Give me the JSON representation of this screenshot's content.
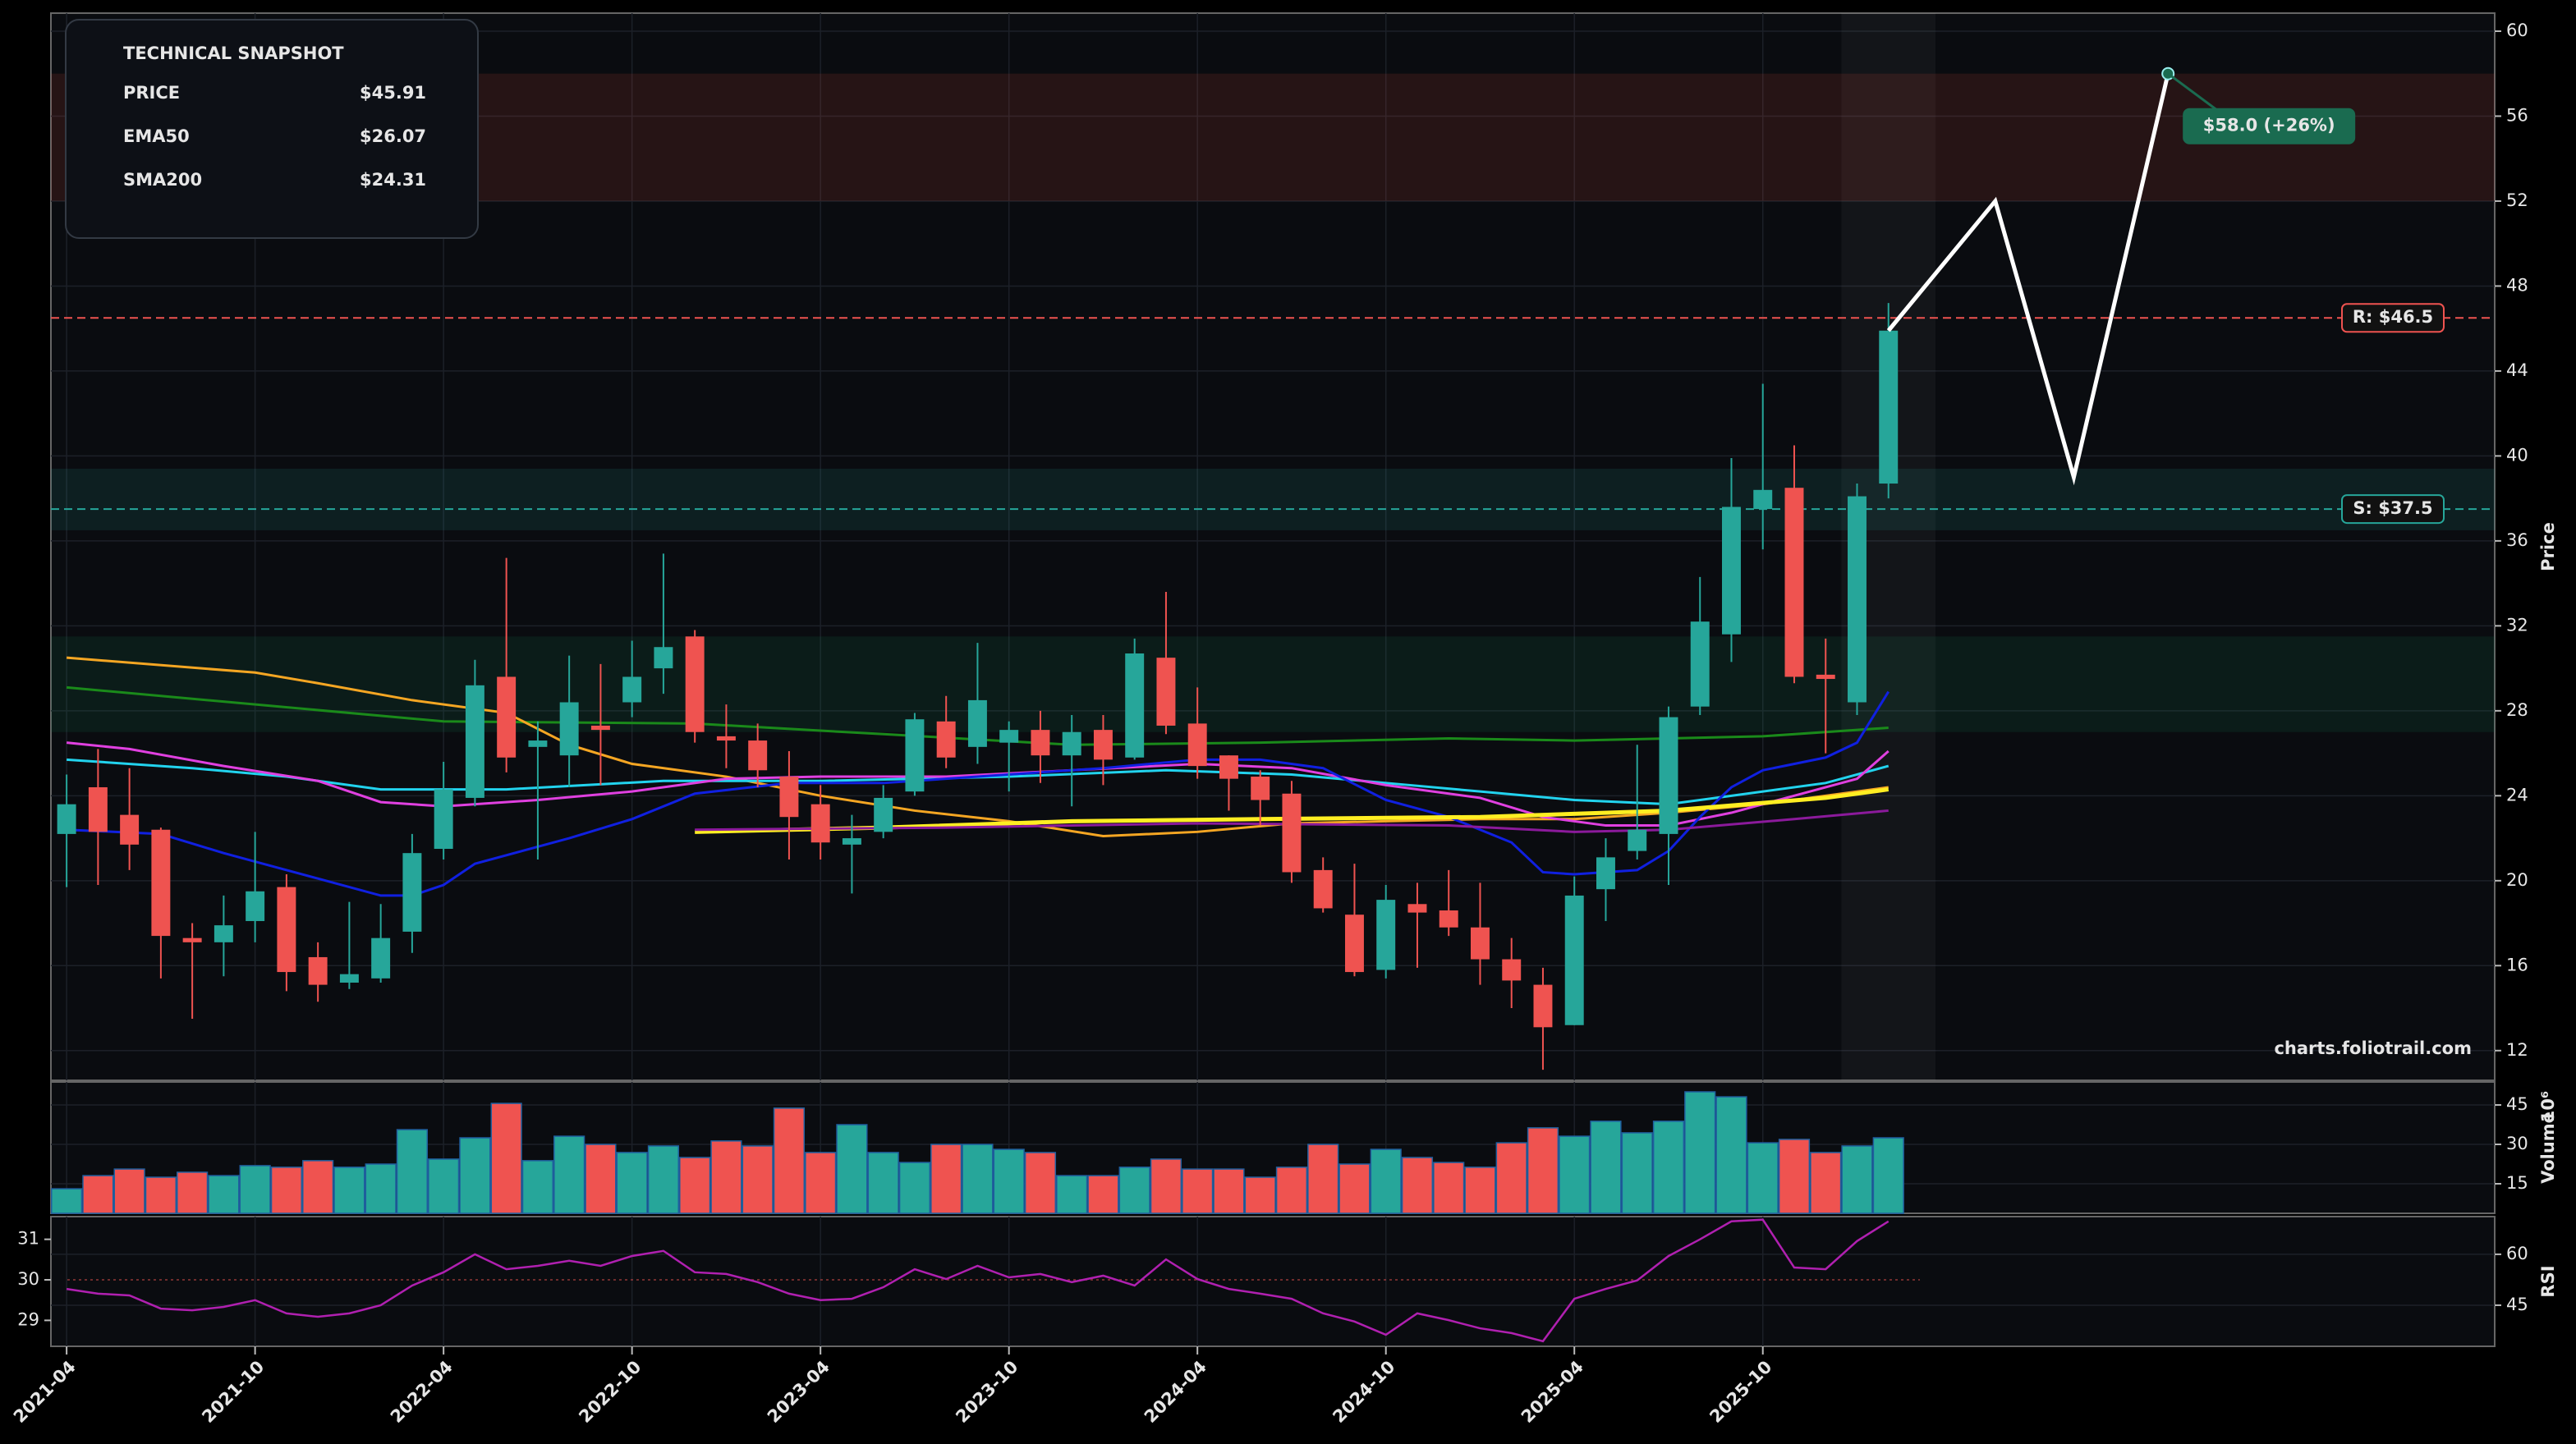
{
  "chart_data": [
    {
      "type": "candlestick",
      "categories": [
        "2021-04",
        null,
        null,
        null,
        null,
        null,
        "2021-10",
        null,
        null,
        null,
        null,
        null,
        "2022-04",
        null,
        null,
        null,
        null,
        null,
        "2022-10",
        null,
        null,
        null,
        null,
        null,
        "2023-04",
        null,
        null,
        null,
        null,
        null,
        "2023-10",
        null,
        null,
        null,
        null,
        null,
        "2024-04",
        null,
        null,
        null,
        null,
        null,
        "2024-10",
        null,
        null,
        null,
        null,
        null,
        "2025-04",
        null,
        null,
        null,
        null,
        null,
        "2025-10",
        null,
        null,
        null,
        null
      ],
      "xlim": [
        -0.5,
        77.3
      ],
      "ylim": [
        10.6,
        60.85
      ],
      "yticks": [
        12,
        16,
        20,
        24,
        28,
        32,
        36,
        40,
        44,
        48,
        52,
        56,
        60
      ],
      "ylabel": "Price",
      "grid": true,
      "up_color": "#26a69a",
      "down_color": "#ef5350",
      "open": [
        22.2,
        24.4,
        23.1,
        22.4,
        17.3,
        17.1,
        18.1,
        19.7,
        16.4,
        15.2,
        15.4,
        17.6,
        21.5,
        23.9,
        29.6,
        26.3,
        25.9,
        27.3,
        28.4,
        30.0,
        31.5,
        26.8,
        26.6,
        24.9,
        23.6,
        21.7,
        22.3,
        24.2,
        27.5,
        26.3,
        26.5,
        27.1,
        25.9,
        27.1,
        25.8,
        30.5,
        27.4,
        25.9,
        24.9,
        24.1,
        20.5,
        18.4,
        15.8,
        18.9,
        18.6,
        17.8,
        16.3,
        15.1,
        13.2,
        19.6,
        21.4,
        22.2,
        28.2,
        31.6,
        37.5,
        38.5,
        29.7,
        28.4,
        38.7
      ],
      "high": [
        25.0,
        26.2,
        25.3,
        22.5,
        18.0,
        19.3,
        22.3,
        20.3,
        17.1,
        19.0,
        18.9,
        22.2,
        25.6,
        30.4,
        35.2,
        27.5,
        30.6,
        30.2,
        31.3,
        35.4,
        31.8,
        28.3,
        27.4,
        26.1,
        24.5,
        23.1,
        24.5,
        27.9,
        28.7,
        31.2,
        27.5,
        28.0,
        27.8,
        27.8,
        31.4,
        33.6,
        29.1,
        25.9,
        25.2,
        24.7,
        21.1,
        20.8,
        19.8,
        19.9,
        20.5,
        19.9,
        17.3,
        15.9,
        20.2,
        22.0,
        26.4,
        28.2,
        34.3,
        39.9,
        43.4,
        40.5,
        31.4,
        38.7,
        47.2
      ],
      "low": [
        19.7,
        19.8,
        20.5,
        15.4,
        13.5,
        15.5,
        17.1,
        14.8,
        14.3,
        14.9,
        15.2,
        16.6,
        21.0,
        23.5,
        25.1,
        21.0,
        24.4,
        24.5,
        27.7,
        28.8,
        26.5,
        25.3,
        24.4,
        21.0,
        21.0,
        19.4,
        22.0,
        24.0,
        25.3,
        25.5,
        24.2,
        24.6,
        23.5,
        24.5,
        25.7,
        26.9,
        24.8,
        23.3,
        22.6,
        19.9,
        18.5,
        15.5,
        15.4,
        15.9,
        17.4,
        15.1,
        14.0,
        11.1,
        13.2,
        18.1,
        21.0,
        19.8,
        27.8,
        30.3,
        35.6,
        29.3,
        26.0,
        27.8,
        38.0
      ],
      "close": [
        23.6,
        22.3,
        21.7,
        17.4,
        17.1,
        17.9,
        19.5,
        15.7,
        15.1,
        15.6,
        17.3,
        21.3,
        24.3,
        29.2,
        25.8,
        26.6,
        28.4,
        27.1,
        29.6,
        31.0,
        27.0,
        26.6,
        25.2,
        23.0,
        21.8,
        22.0,
        23.9,
        27.6,
        25.8,
        28.5,
        27.1,
        25.9,
        27.0,
        25.7,
        30.7,
        27.3,
        25.4,
        24.8,
        23.8,
        20.4,
        18.7,
        15.7,
        19.1,
        18.5,
        17.8,
        16.3,
        15.3,
        13.1,
        19.3,
        21.1,
        22.4,
        27.7,
        32.2,
        37.6,
        38.4,
        29.6,
        29.5,
        38.1,
        45.9
      ],
      "lines": [
        {
          "color": "#1a8a1a",
          "x": [
            0,
            12,
            20,
            26,
            32,
            38,
            44,
            48,
            54,
            58
          ],
          "values": [
            29.1,
            27.5,
            27.4,
            26.9,
            26.4,
            26.5,
            26.7,
            26.6,
            26.8,
            27.2
          ]
        },
        {
          "color": "#f5a623",
          "x": [
            0,
            6,
            8,
            11,
            14,
            16,
            18,
            21,
            24,
            27,
            30,
            33,
            36,
            39,
            42,
            45,
            48,
            51,
            54,
            58
          ],
          "values": [
            30.5,
            29.8,
            29.3,
            28.5,
            27.9,
            26.4,
            25.5,
            24.9,
            24.0,
            23.3,
            22.8,
            22.1,
            22.3,
            22.7,
            22.8,
            22.9,
            22.9,
            23.2,
            23.6,
            24.4
          ]
        },
        {
          "color": "#22d3ee",
          "x": [
            0,
            4,
            7,
            10,
            14,
            19,
            24,
            30,
            35,
            39,
            42,
            45,
            48,
            51,
            53,
            56,
            58
          ],
          "values": [
            25.7,
            25.3,
            24.9,
            24.3,
            24.3,
            24.7,
            24.7,
            24.9,
            25.2,
            25.0,
            24.6,
            24.2,
            23.8,
            23.6,
            24.0,
            24.6,
            25.4
          ]
        },
        {
          "color": "#e040e0",
          "x": [
            0,
            2,
            5,
            8,
            10,
            12,
            15,
            18,
            21,
            24,
            28,
            32,
            36,
            39,
            42,
            45,
            47,
            49,
            51,
            53,
            55,
            57,
            58
          ],
          "values": [
            26.5,
            26.2,
            25.4,
            24.7,
            23.7,
            23.5,
            23.8,
            24.2,
            24.8,
            24.9,
            24.9,
            25.2,
            25.5,
            25.3,
            24.5,
            23.9,
            23.0,
            22.6,
            22.6,
            23.2,
            24.0,
            24.8,
            26.1
          ]
        },
        {
          "color": "#1020e0",
          "x": [
            0,
            3,
            5,
            6,
            8,
            10,
            11,
            12,
            13,
            16,
            18,
            20,
            23,
            26,
            29,
            33,
            36,
            38,
            40,
            42,
            44,
            46,
            47,
            48,
            50,
            51,
            52,
            53,
            54,
            56,
            57,
            58
          ],
          "values": [
            22.4,
            22.2,
            21.3,
            20.9,
            20.1,
            19.3,
            19.3,
            19.8,
            20.8,
            22.0,
            22.9,
            24.1,
            24.6,
            24.6,
            24.9,
            25.3,
            25.7,
            25.7,
            25.3,
            23.8,
            23.0,
            21.8,
            20.4,
            20.3,
            20.5,
            21.4,
            23.0,
            24.4,
            25.2,
            25.8,
            26.5,
            28.9
          ]
        },
        {
          "color": "#ffee22",
          "x": [
            20,
            26,
            32,
            38,
            45,
            51,
            56,
            58
          ],
          "values": [
            22.3,
            22.5,
            22.8,
            22.9,
            23.0,
            23.3,
            23.9,
            24.3
          ]
        },
        {
          "color": "#8b1a9b",
          "x": [
            20,
            28,
            36,
            44,
            48,
            51,
            55,
            58
          ],
          "values": [
            22.4,
            22.5,
            22.7,
            22.6,
            22.3,
            22.4,
            22.9,
            23.3
          ]
        }
      ],
      "zones": [
        {
          "range": [
            52,
            58
          ],
          "color": "#e74c3c"
        },
        {
          "range": [
            36.5,
            39.4
          ],
          "color": "#26a69a"
        },
        {
          "range": [
            27,
            31.5
          ],
          "color": "#1a8a5a"
        }
      ],
      "levels": [
        {
          "value": 46.5,
          "label": "R: $46.5",
          "color": "#ef5350"
        },
        {
          "value": 37.5,
          "label": "S: $37.5",
          "color": "#26a69a"
        }
      ],
      "highlight_x": [
        56.5,
        59.5
      ],
      "projection": {
        "x": [
          58,
          61.4,
          63.9,
          66.9
        ],
        "values": [
          45.9,
          52,
          39,
          58
        ],
        "label": "$58.0 (+26%)"
      },
      "snapshot": {
        "title": "TECHNICAL SNAPSHOT",
        "rows": [
          {
            "label": "PRICE",
            "value": "$45.91",
            "color": "#ffffff"
          },
          {
            "label": "EMA50",
            "value": "$26.07",
            "color": "#e040e0"
          },
          {
            "label": "SMA200",
            "value": "$24.31",
            "color": "#ffee22"
          }
        ]
      },
      "watermark": "charts.foliotrail.com"
    },
    {
      "type": "bar",
      "xlim": [
        -0.5,
        77.3
      ],
      "ylim": [
        3.75,
        53.75
      ],
      "yticks": [
        15,
        30,
        45
      ],
      "ylabel": "Volume",
      "offset_label": "10⁶",
      "values": [
        13.1,
        18.1,
        20.6,
        17.5,
        19.4,
        18.1,
        21.9,
        21.3,
        23.8,
        21.3,
        22.5,
        35.6,
        24.4,
        32.5,
        45.6,
        23.8,
        33.1,
        30,
        26.9,
        29.4,
        25,
        31.3,
        29.4,
        43.8,
        26.9,
        37.5,
        26.9,
        23.1,
        30,
        30,
        28.1,
        26.9,
        18.1,
        18.1,
        21.3,
        24.4,
        20.6,
        20.6,
        17.5,
        21.3,
        30,
        22.5,
        28.1,
        25,
        23.1,
        21.3,
        30.6,
        36.3,
        33.1,
        38.8,
        34.4,
        38.8,
        50,
        48.1,
        30.6,
        31.9,
        26.9,
        29.4,
        32.5
      ]
    },
    {
      "type": "line",
      "xlim": [
        -0.5,
        77.3
      ],
      "ylim": [
        32.9,
        71.1
      ],
      "yticks": [
        45,
        60
      ],
      "left_ylim": [
        28.36,
        31.56
      ],
      "left_yticks": [
        29,
        30,
        31
      ],
      "left_ref": 30,
      "ylabel": "RSI",
      "color": "#b020b0",
      "values": [
        49.8,
        48.4,
        47.9,
        44,
        43.5,
        44.5,
        46.5,
        42.6,
        41.6,
        42.6,
        45,
        50.8,
        54.7,
        60,
        55.6,
        56.6,
        58.1,
        56.6,
        59.5,
        61,
        54.7,
        54.2,
        51.8,
        48.4,
        46.5,
        46.9,
        50.3,
        55.6,
        52.7,
        56.6,
        53.2,
        54.2,
        51.8,
        53.7,
        50.8,
        58.5,
        52.7,
        49.8,
        48.4,
        46.9,
        42.6,
        40.2,
        36.3,
        42.6,
        40.6,
        38.2,
        36.8,
        34.4,
        46.9,
        49.8,
        52.3,
        59.5,
        64.4,
        69.7,
        70.2,
        56.1,
        55.6,
        63.9,
        69.7
      ]
    }
  ]
}
